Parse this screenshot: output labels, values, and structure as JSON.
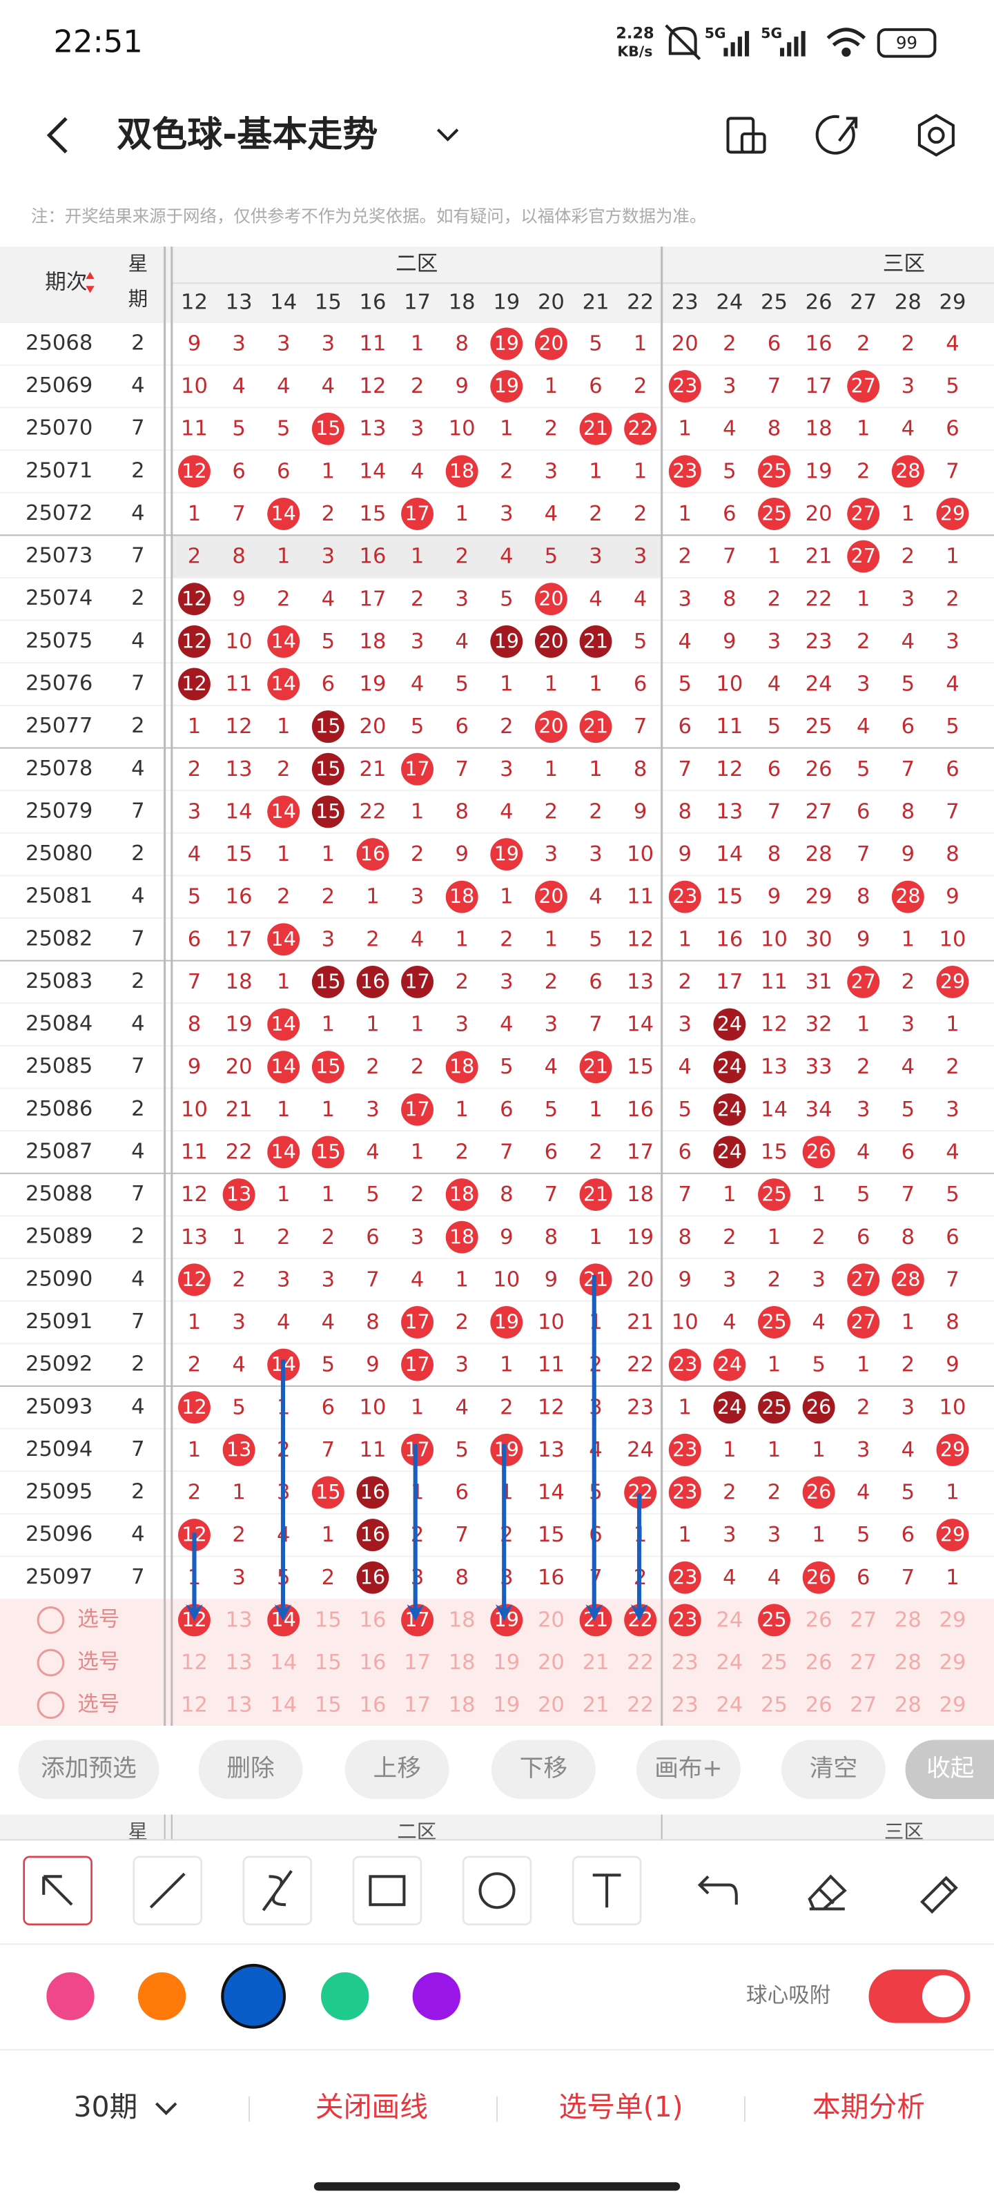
{
  "status_bar": {
    "time": "22:51",
    "speed": "2.28",
    "speed_unit": "KB/s",
    "net1": "5G",
    "net2": "5G",
    "battery": "99"
  },
  "header": {
    "title": "双色球-基本走势"
  },
  "note": "注：开奖结果来源于网络，仅供参考不作为兑奖依据。如有疑问，以福体彩官方数据为准。",
  "table": {
    "head": {
      "period": "期次",
      "weekday_top": "星",
      "weekday_bottom": "期",
      "zone2": "二区",
      "zone3": "三区",
      "columns": [
        12,
        13,
        14,
        15,
        16,
        17,
        18,
        19,
        20,
        21,
        22,
        23,
        24,
        25,
        26,
        27,
        28,
        29
      ]
    },
    "rows": [
      {
        "period": "25068",
        "weekday": 2,
        "cells": [
          9,
          3,
          3,
          3,
          11,
          1,
          8,
          19,
          20,
          5,
          1,
          20,
          2,
          6,
          16,
          2,
          2,
          4
        ],
        "hits": [
          19,
          20
        ],
        "dark": []
      },
      {
        "period": "25069",
        "weekday": 4,
        "cells": [
          10,
          4,
          4,
          4,
          12,
          2,
          9,
          19,
          1,
          6,
          2,
          23,
          3,
          7,
          17,
          27,
          3,
          5
        ],
        "hits": [
          19,
          23,
          27
        ],
        "dark": []
      },
      {
        "period": "25070",
        "weekday": 7,
        "cells": [
          11,
          5,
          5,
          15,
          13,
          3,
          10,
          1,
          2,
          21,
          22,
          1,
          4,
          8,
          18,
          1,
          4,
          6
        ],
        "hits": [
          15,
          21,
          22
        ],
        "dark": []
      },
      {
        "period": "25071",
        "weekday": 2,
        "cells": [
          12,
          6,
          6,
          1,
          14,
          4,
          18,
          2,
          3,
          1,
          1,
          23,
          5,
          25,
          19,
          2,
          28,
          7
        ],
        "hits": [
          12,
          18,
          23,
          25,
          28
        ],
        "dark": []
      },
      {
        "period": "25072",
        "weekday": 4,
        "cells": [
          1,
          7,
          14,
          2,
          15,
          17,
          1,
          3,
          4,
          2,
          2,
          1,
          6,
          25,
          20,
          27,
          1,
          29
        ],
        "hits": [
          14,
          17,
          25,
          27,
          29
        ],
        "dark": []
      },
      {
        "period": "25073",
        "weekday": 7,
        "cells": [
          2,
          8,
          1,
          3,
          16,
          1,
          2,
          4,
          5,
          3,
          3,
          2,
          7,
          1,
          21,
          27,
          2,
          1
        ],
        "hits": [
          27
        ],
        "dark": []
      },
      {
        "period": "25074",
        "weekday": 2,
        "cells": [
          12,
          9,
          2,
          4,
          17,
          2,
          3,
          5,
          20,
          4,
          4,
          3,
          8,
          2,
          22,
          1,
          3,
          2
        ],
        "hits": [
          20
        ],
        "dark": [
          12
        ]
      },
      {
        "period": "25075",
        "weekday": 4,
        "cells": [
          12,
          10,
          14,
          5,
          18,
          3,
          4,
          19,
          20,
          21,
          5,
          4,
          9,
          3,
          23,
          2,
          4,
          3
        ],
        "hits": [
          14
        ],
        "dark": [
          12,
          19,
          20,
          21
        ]
      },
      {
        "period": "25076",
        "weekday": 7,
        "cells": [
          12,
          11,
          14,
          6,
          19,
          4,
          5,
          1,
          1,
          1,
          6,
          5,
          10,
          4,
          24,
          3,
          5,
          4
        ],
        "hits": [
          14
        ],
        "dark": [
          12
        ]
      },
      {
        "period": "25077",
        "weekday": 2,
        "cells": [
          1,
          12,
          1,
          15,
          20,
          5,
          6,
          2,
          20,
          21,
          7,
          6,
          11,
          5,
          25,
          4,
          6,
          5
        ],
        "hits": [
          20,
          21
        ],
        "dark": [
          15
        ]
      },
      {
        "period": "25078",
        "weekday": 4,
        "cells": [
          2,
          13,
          2,
          15,
          21,
          17,
          7,
          3,
          1,
          1,
          8,
          7,
          12,
          6,
          26,
          5,
          7,
          6
        ],
        "hits": [
          17
        ],
        "dark": [
          15
        ]
      },
      {
        "period": "25079",
        "weekday": 7,
        "cells": [
          3,
          14,
          14,
          15,
          22,
          1,
          8,
          4,
          2,
          2,
          9,
          8,
          13,
          7,
          27,
          6,
          8,
          7
        ],
        "hits": [
          14
        ],
        "dark": [
          15
        ]
      },
      {
        "period": "25080",
        "weekday": 2,
        "cells": [
          4,
          15,
          1,
          1,
          16,
          2,
          9,
          19,
          3,
          3,
          10,
          9,
          14,
          8,
          28,
          7,
          9,
          8
        ],
        "hits": [
          16,
          19
        ],
        "dark": []
      },
      {
        "period": "25081",
        "weekday": 4,
        "cells": [
          5,
          16,
          2,
          2,
          1,
          3,
          18,
          1,
          20,
          4,
          11,
          23,
          15,
          9,
          29,
          8,
          28,
          9
        ],
        "hits": [
          18,
          20,
          23,
          28
        ],
        "dark": []
      },
      {
        "period": "25082",
        "weekday": 7,
        "cells": [
          6,
          17,
          14,
          3,
          2,
          4,
          1,
          2,
          1,
          5,
          12,
          1,
          16,
          10,
          30,
          9,
          1,
          10
        ],
        "hits": [
          14
        ],
        "dark": []
      },
      {
        "period": "25083",
        "weekday": 2,
        "cells": [
          7,
          18,
          1,
          15,
          16,
          17,
          2,
          3,
          2,
          6,
          13,
          2,
          17,
          11,
          31,
          27,
          2,
          29
        ],
        "hits": [
          27,
          29
        ],
        "dark": [
          15,
          16,
          17
        ]
      },
      {
        "period": "25084",
        "weekday": 4,
        "cells": [
          8,
          19,
          14,
          1,
          1,
          1,
          3,
          4,
          3,
          7,
          14,
          3,
          24,
          12,
          32,
          1,
          3,
          1
        ],
        "hits": [
          14
        ],
        "dark": [
          24
        ]
      },
      {
        "period": "25085",
        "weekday": 7,
        "cells": [
          9,
          20,
          14,
          15,
          2,
          2,
          18,
          5,
          4,
          21,
          15,
          4,
          24,
          13,
          33,
          2,
          4,
          2
        ],
        "hits": [
          14,
          15,
          18,
          21
        ],
        "dark": [
          24
        ]
      },
      {
        "period": "25086",
        "weekday": 2,
        "cells": [
          10,
          21,
          1,
          1,
          3,
          17,
          1,
          6,
          5,
          1,
          16,
          5,
          24,
          14,
          34,
          3,
          5,
          3
        ],
        "hits": [
          17
        ],
        "dark": [
          24
        ]
      },
      {
        "period": "25087",
        "weekday": 4,
        "cells": [
          11,
          22,
          14,
          15,
          4,
          1,
          2,
          7,
          6,
          2,
          17,
          6,
          24,
          15,
          26,
          4,
          6,
          4
        ],
        "hits": [
          14,
          15,
          26
        ],
        "dark": [
          24
        ]
      },
      {
        "period": "25088",
        "weekday": 7,
        "cells": [
          12,
          13,
          1,
          1,
          5,
          2,
          18,
          8,
          7,
          21,
          18,
          7,
          1,
          25,
          1,
          5,
          7,
          5
        ],
        "hits": [
          13,
          18,
          21,
          25
        ],
        "dark": []
      },
      {
        "period": "25089",
        "weekday": 2,
        "cells": [
          13,
          1,
          2,
          2,
          6,
          3,
          18,
          9,
          8,
          1,
          19,
          8,
          2,
          1,
          2,
          6,
          8,
          6
        ],
        "hits": [
          18
        ],
        "dark": []
      },
      {
        "period": "25090",
        "weekday": 4,
        "cells": [
          12,
          2,
          3,
          3,
          7,
          4,
          1,
          10,
          9,
          21,
          20,
          9,
          3,
          2,
          3,
          27,
          28,
          7
        ],
        "hits": [
          12,
          21,
          27,
          28
        ],
        "dark": []
      },
      {
        "period": "25091",
        "weekday": 7,
        "cells": [
          1,
          3,
          4,
          4,
          8,
          17,
          2,
          19,
          10,
          1,
          21,
          10,
          4,
          25,
          4,
          27,
          1,
          8
        ],
        "hits": [
          17,
          19,
          25,
          27
        ],
        "dark": []
      },
      {
        "period": "25092",
        "weekday": 2,
        "cells": [
          2,
          4,
          14,
          5,
          9,
          17,
          3,
          1,
          11,
          2,
          22,
          23,
          24,
          1,
          5,
          1,
          2,
          9
        ],
        "hits": [
          14,
          17,
          23,
          24
        ],
        "dark": []
      },
      {
        "period": "25093",
        "weekday": 4,
        "cells": [
          12,
          5,
          1,
          6,
          10,
          1,
          4,
          2,
          12,
          3,
          23,
          1,
          24,
          25,
          26,
          2,
          3,
          10
        ],
        "hits": [
          12
        ],
        "dark": [
          24,
          25,
          26
        ]
      },
      {
        "period": "25094",
        "weekday": 7,
        "cells": [
          1,
          13,
          2,
          7,
          11,
          17,
          5,
          19,
          13,
          4,
          24,
          23,
          1,
          1,
          1,
          3,
          4,
          29
        ],
        "hits": [
          13,
          17,
          19,
          23,
          29
        ],
        "dark": []
      },
      {
        "period": "25095",
        "weekday": 2,
        "cells": [
          2,
          1,
          3,
          15,
          16,
          1,
          6,
          1,
          14,
          5,
          22,
          23,
          2,
          2,
          26,
          4,
          5,
          1
        ],
        "hits": [
          15,
          22,
          23,
          26
        ],
        "dark": [
          16
        ]
      },
      {
        "period": "25096",
        "weekday": 4,
        "cells": [
          12,
          2,
          4,
          1,
          16,
          2,
          7,
          2,
          15,
          6,
          1,
          1,
          3,
          3,
          1,
          5,
          6,
          29
        ],
        "hits": [
          12,
          29
        ],
        "dark": [
          16
        ]
      },
      {
        "period": "25097",
        "weekday": 7,
        "cells": [
          1,
          3,
          5,
          2,
          16,
          3,
          8,
          3,
          16,
          7,
          2,
          23,
          4,
          4,
          26,
          6,
          7,
          1
        ],
        "hits": [
          23,
          26
        ],
        "dark": [
          16
        ]
      }
    ],
    "select_label": "选号",
    "select_rows": [
      {
        "hits": [
          12,
          14,
          17,
          19,
          21,
          22,
          23,
          25
        ]
      },
      {
        "hits": []
      },
      {
        "hits": []
      }
    ]
  },
  "buttons": [
    "添加预选",
    "删除",
    "上移",
    "下移",
    "画布+",
    "清空",
    "收起"
  ],
  "sub_header": {
    "weekday": "星",
    "zone2": "二区",
    "zone3": "三区"
  },
  "palette": [
    "#f0478a",
    "#ff7a0a",
    "#0a5cc8",
    "#1fcb8c",
    "#9a16e8"
  ],
  "snap_label": "球心吸附",
  "footer": {
    "period_select": "30期",
    "close_draw": "关闭画线",
    "pick_list": "选号单(1)",
    "analysis": "本期分析"
  }
}
